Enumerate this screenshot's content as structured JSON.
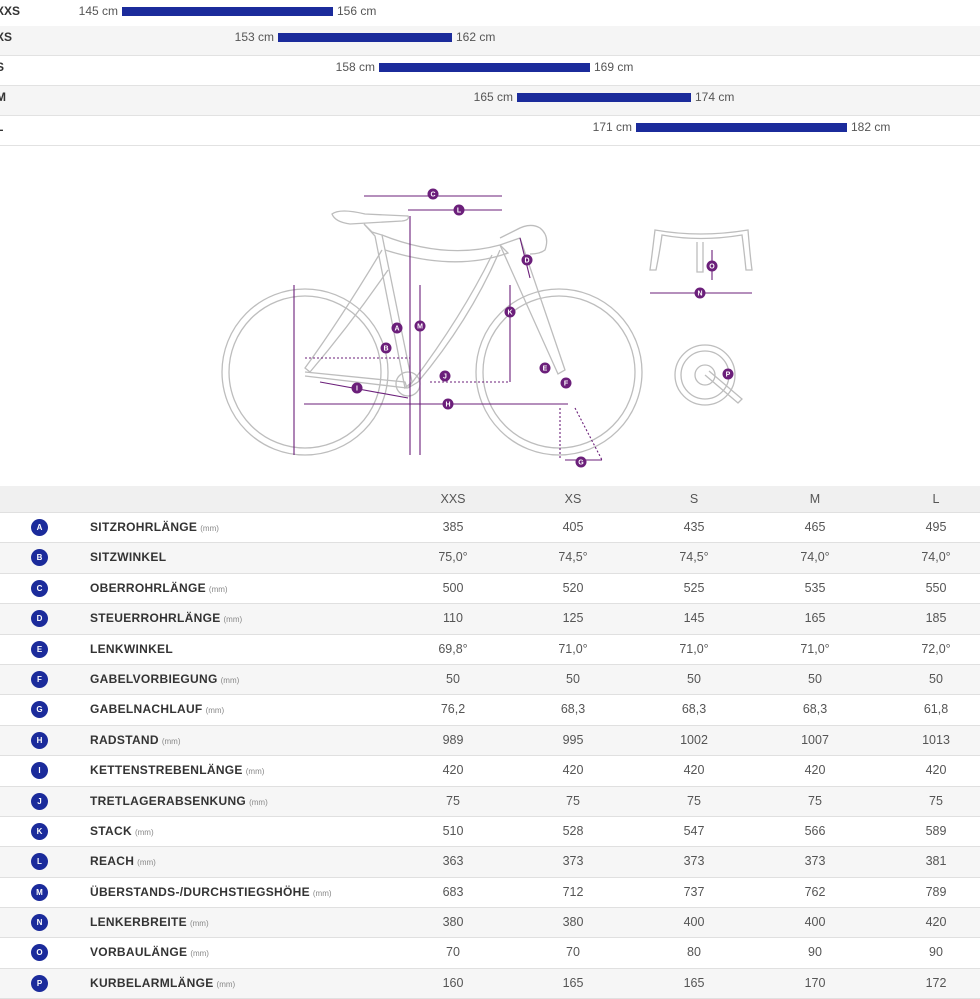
{
  "size_ranges": [
    {
      "size": "XXS",
      "min": "145 cm",
      "max": "156 cm"
    },
    {
      "size": "XS",
      "min": "153 cm",
      "max": "162 cm"
    },
    {
      "size": "S",
      "min": "158 cm",
      "max": "169 cm"
    },
    {
      "size": "M",
      "min": "165 cm",
      "max": "174 cm"
    },
    {
      "size": "L",
      "min": "171 cm",
      "max": "182 cm"
    }
  ],
  "diagram_letters": [
    "A",
    "B",
    "C",
    "D",
    "E",
    "F",
    "G",
    "H",
    "I",
    "J",
    "K",
    "L",
    "M",
    "N",
    "O",
    "P"
  ],
  "colors": {
    "accent": "#1b2b9b",
    "diagram_marks": "#6b1f7a",
    "frame_line": "#bdbdbd"
  },
  "table": {
    "columns": [
      "XXS",
      "XS",
      "S",
      "M",
      "L"
    ],
    "rows": [
      {
        "letter": "A",
        "label": "SITZROHRLÄNGE",
        "unit": "(mm)",
        "values": [
          "385",
          "405",
          "435",
          "465",
          "495"
        ]
      },
      {
        "letter": "B",
        "label": "SITZWINKEL",
        "unit": "",
        "values": [
          "75,0°",
          "74,5°",
          "74,5°",
          "74,0°",
          "74,0°"
        ]
      },
      {
        "letter": "C",
        "label": "OBERROHRLÄNGE",
        "unit": "(mm)",
        "values": [
          "500",
          "520",
          "525",
          "535",
          "550"
        ]
      },
      {
        "letter": "D",
        "label": "STEUERROHRLÄNGE",
        "unit": "(mm)",
        "values": [
          "110",
          "125",
          "145",
          "165",
          "185"
        ]
      },
      {
        "letter": "E",
        "label": "LENKWINKEL",
        "unit": "",
        "values": [
          "69,8°",
          "71,0°",
          "71,0°",
          "71,0°",
          "72,0°"
        ]
      },
      {
        "letter": "F",
        "label": "GABELVORBIEGUNG",
        "unit": "(mm)",
        "values": [
          "50",
          "50",
          "50",
          "50",
          "50"
        ]
      },
      {
        "letter": "G",
        "label": "GABELNACHLAUF",
        "unit": "(mm)",
        "values": [
          "76,2",
          "68,3",
          "68,3",
          "68,3",
          "61,8"
        ]
      },
      {
        "letter": "H",
        "label": "RADSTAND",
        "unit": "(mm)",
        "values": [
          "989",
          "995",
          "1002",
          "1007",
          "1013"
        ]
      },
      {
        "letter": "I",
        "label": "KETTENSTREBENLÄNGE",
        "unit": "(mm)",
        "values": [
          "420",
          "420",
          "420",
          "420",
          "420"
        ]
      },
      {
        "letter": "J",
        "label": "TRETLAGERABSENKUNG",
        "unit": "(mm)",
        "values": [
          "75",
          "75",
          "75",
          "75",
          "75"
        ]
      },
      {
        "letter": "K",
        "label": "STACK",
        "unit": "(mm)",
        "values": [
          "510",
          "528",
          "547",
          "566",
          "589"
        ]
      },
      {
        "letter": "L",
        "label": "REACH",
        "unit": "(mm)",
        "values": [
          "363",
          "373",
          "373",
          "373",
          "381"
        ]
      },
      {
        "letter": "M",
        "label": "ÜBERSTANDS-/DURCHSTIEGSHÖHE",
        "unit": "(mm)",
        "values": [
          "683",
          "712",
          "737",
          "762",
          "789"
        ]
      },
      {
        "letter": "N",
        "label": "LENKERBREITE",
        "unit": "(mm)",
        "values": [
          "380",
          "380",
          "400",
          "400",
          "420"
        ]
      },
      {
        "letter": "O",
        "label": "VORBAULÄNGE",
        "unit": "(mm)",
        "values": [
          "70",
          "70",
          "80",
          "90",
          "90"
        ]
      },
      {
        "letter": "P",
        "label": "KURBELARMLÄNGE",
        "unit": "(mm)",
        "values": [
          "160",
          "165",
          "165",
          "170",
          "172"
        ]
      }
    ]
  }
}
